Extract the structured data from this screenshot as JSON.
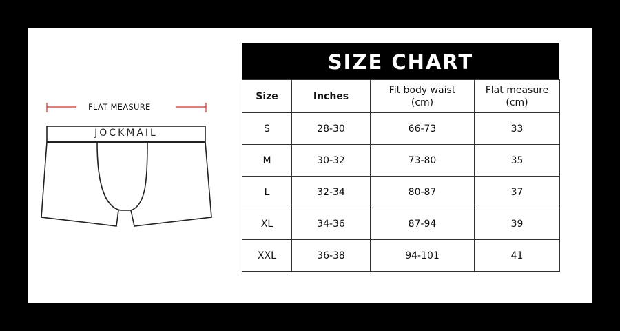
{
  "illustration": {
    "measure_label": "FLAT MEASURE",
    "brand": "JOCKMAIL",
    "measure_line_color": "#c0392b"
  },
  "chart": {
    "title": "SIZE CHART",
    "headers": [
      {
        "line1": "Size",
        "line2": ""
      },
      {
        "line1": "Inches",
        "line2": ""
      },
      {
        "line1": "Fit body waist",
        "line2": "(cm)"
      },
      {
        "line1": "Flat measure",
        "line2": "(cm)"
      }
    ],
    "rows": [
      [
        "S",
        "28-30",
        "66-73",
        "33"
      ],
      [
        "M",
        "30-32",
        "73-80",
        "35"
      ],
      [
        "L",
        "32-34",
        "80-87",
        "37"
      ],
      [
        "XL",
        "34-36",
        "87-94",
        "39"
      ],
      [
        "XXL",
        "36-38",
        "94-101",
        "41"
      ]
    ]
  }
}
